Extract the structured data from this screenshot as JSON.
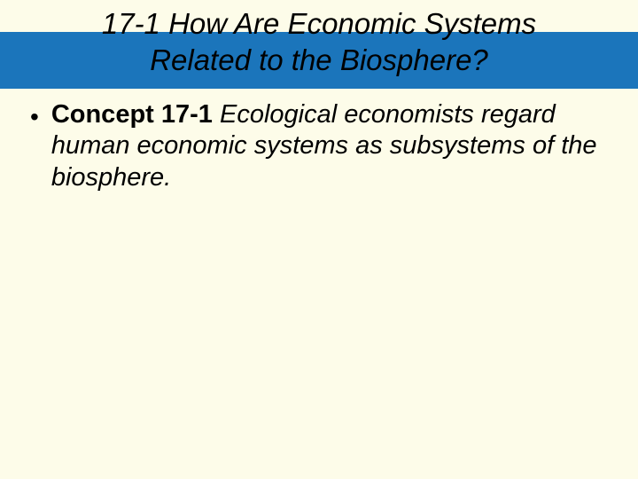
{
  "colors": {
    "background": "#fdfce9",
    "band": "#1b75bb",
    "text": "#000000"
  },
  "title": {
    "line1": "17-1 How Are Economic Systems",
    "line2": "Related to the Biosphere?",
    "font_style": "italic",
    "font_size_pt": 33
  },
  "body": {
    "bullet_glyph": "•",
    "concept_label": "Concept 17-1",
    "concept_text": "  Ecological economists regard human economic systems as subsystems of the biosphere.",
    "font_size_pt": 29
  }
}
